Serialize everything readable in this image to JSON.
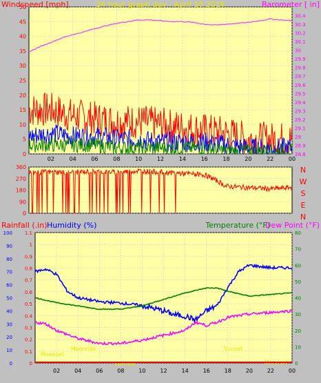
{
  "chart_data": [
    {
      "type": "line",
      "title": "24 hour graph day - April 10 2016",
      "left_axis_label": "Windspeed [mph]",
      "right_axis_label": "Barometer [ in]",
      "y_left": {
        "min": 0,
        "max": 50,
        "ticks": [
          "0",
          "5",
          "10",
          "15",
          "20",
          "25",
          "30",
          "35",
          "40",
          "45",
          "50"
        ]
      },
      "y_right": {
        "min": 28.8,
        "max": 30.5,
        "ticks": [
          "28.8",
          "28.9",
          "29",
          "29.1",
          "29.2",
          "29.3",
          "29.4",
          "29.5",
          "29.6",
          "29.7",
          "29.8",
          "29.9",
          "30",
          "30.1",
          "30.2",
          "30.3",
          "30.4"
        ]
      },
      "x_ticks": [
        "02",
        "04",
        "06",
        "08",
        "10",
        "12",
        "14",
        "16",
        "18",
        "20",
        "22",
        "00"
      ],
      "series": [
        {
          "axis": "right",
          "color": "#ff33ff",
          "x": [
            0,
            1,
            2,
            3,
            4,
            5,
            6,
            7,
            8,
            9,
            10,
            11,
            12,
            13,
            14,
            15,
            16,
            17,
            18,
            19,
            20,
            21,
            22,
            23,
            24
          ],
          "y": [
            29.98,
            30.04,
            30.09,
            30.14,
            30.18,
            30.21,
            30.25,
            30.28,
            30.31,
            30.33,
            30.35,
            30.35,
            30.34,
            30.33,
            30.33,
            30.32,
            30.3,
            30.29,
            30.3,
            30.31,
            30.32,
            30.34,
            30.36,
            30.35,
            30.34
          ]
        },
        {
          "axis": "left",
          "color": "#ff0000",
          "x": [
            0,
            2,
            4,
            6,
            8,
            10,
            12,
            14,
            16,
            18,
            20,
            22,
            24
          ],
          "y": [
            15,
            15,
            13,
            12,
            11,
            11,
            10,
            9,
            8,
            7,
            5,
            5,
            5
          ]
        },
        {
          "axis": "left",
          "color": "#0000ff",
          "x": [
            0,
            2,
            4,
            6,
            8,
            10,
            12,
            14,
            16,
            18,
            20,
            22,
            24
          ],
          "y": [
            6,
            7,
            6,
            6,
            5,
            5,
            4,
            4,
            4,
            3,
            2,
            2,
            2
          ]
        },
        {
          "axis": "left",
          "color": "#008000",
          "x": [
            0,
            2,
            4,
            6,
            8,
            10,
            12,
            14,
            16,
            18,
            20,
            22,
            24
          ],
          "y": [
            3,
            3,
            3,
            3,
            2,
            2,
            2,
            2,
            2,
            1,
            1,
            1,
            1
          ]
        }
      ]
    },
    {
      "type": "line",
      "right_labels": [
        "N",
        "W",
        "S",
        "E",
        "N"
      ],
      "y_left": {
        "min": 0,
        "max": 360,
        "ticks": [
          "0",
          "90",
          "180",
          "270",
          "360"
        ]
      },
      "series": [
        {
          "color": "#ff0000",
          "x": [
            0,
            2,
            4,
            6,
            8,
            10,
            12,
            14,
            16,
            17,
            18,
            20,
            22,
            24
          ],
          "y": [
            320,
            320,
            320,
            325,
            320,
            330,
            320,
            310,
            300,
            260,
            210,
            200,
            190,
            200
          ]
        }
      ]
    },
    {
      "type": "line",
      "left_axis_label_1": "Rainfall (.in)",
      "left_axis_label_2": "Humidity (%)",
      "right_axis_label_1": "Temperature (°F)",
      "right_axis_label_2": "Dew Point (°F)",
      "y_humidity": {
        "min": 0,
        "max": 100,
        "ticks": [
          "0",
          "10",
          "20",
          "30",
          "40",
          "50",
          "60",
          "70",
          "80",
          "90",
          "100"
        ]
      },
      "y_rain": {
        "min": 0,
        "max": 1.1,
        "ticks": [
          "0",
          "0.1",
          "0.2",
          "0.3",
          "0.4",
          "0.5",
          "0.6",
          "0.7",
          "0.8",
          "0.9",
          "1",
          "1.1"
        ]
      },
      "y_temp": {
        "min": 0,
        "max": 80,
        "ticks": [
          "0",
          "10",
          "20",
          "30",
          "40",
          "50",
          "60",
          "70",
          "80"
        ]
      },
      "x_ticks": [
        "02",
        "04",
        "06",
        "08",
        "10",
        "12",
        "14",
        "16",
        "18",
        "20",
        "22",
        "00"
      ],
      "annotations": [
        "Moonset",
        "Moonrise",
        "Sunrise",
        "Sunset",
        "Moonset"
      ],
      "series": [
        {
          "name": "Humidity",
          "axis": "humidity",
          "color": "#0000ff",
          "x": [
            0,
            1,
            2,
            3,
            4,
            6,
            8,
            10,
            12,
            13,
            14,
            15,
            16,
            17,
            18,
            19,
            20,
            22,
            24
          ],
          "y": [
            70,
            72,
            68,
            55,
            50,
            47,
            46,
            44,
            40,
            37,
            36,
            33,
            40,
            44,
            58,
            70,
            75,
            73,
            73
          ]
        },
        {
          "name": "Temperature",
          "axis": "temp",
          "color": "#008000",
          "x": [
            0,
            2,
            4,
            6,
            8,
            10,
            12,
            14,
            16,
            17,
            18,
            20,
            22,
            24
          ],
          "y": [
            40,
            37,
            35,
            33,
            33,
            35,
            39,
            43,
            46,
            46,
            44,
            41,
            42,
            43
          ]
        },
        {
          "name": "Dew Point",
          "axis": "temp",
          "color": "#ff00ff",
          "x": [
            0,
            1,
            2,
            4,
            6,
            8,
            10,
            12,
            14,
            15,
            16,
            17,
            18,
            20,
            22,
            24
          ],
          "y": [
            25,
            24,
            20,
            15,
            12,
            12,
            14,
            17,
            20,
            25,
            23,
            25,
            28,
            30,
            31,
            32
          ]
        },
        {
          "name": "Rainfall",
          "axis": "rain",
          "color": "#ff0000",
          "x": [
            0,
            24
          ],
          "y": [
            0,
            0
          ]
        }
      ]
    }
  ]
}
